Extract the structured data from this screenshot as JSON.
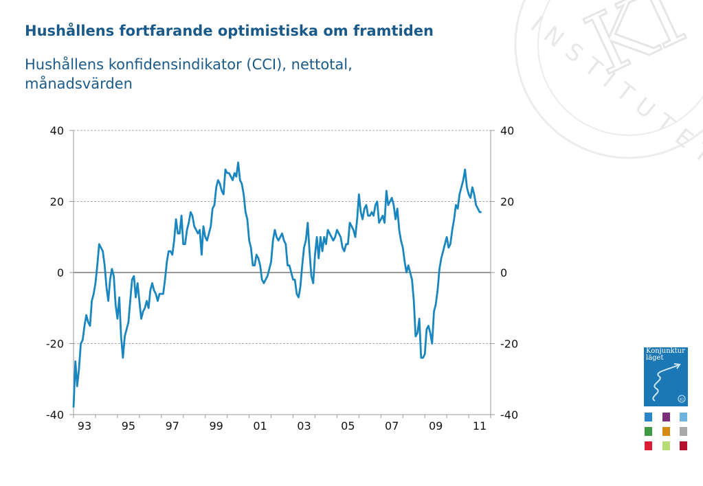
{
  "header": {
    "title": "Hushållens fortfarande optimistiska om framtiden",
    "subtitle": "Hushållens konfidensindikator (CCI), nettotal, månadsvärden"
  },
  "watermark": {
    "text": "INSTITUTET",
    "monogram": "KI"
  },
  "logo": {
    "text_line1": "Konjunktur",
    "text_line2": "läget",
    "badge": "KI",
    "icon_colors": [
      "#2a86c8",
      "#7a2f7a",
      "#6fb3e0",
      "#3f9a45",
      "#d58a14",
      "#a9a9a9",
      "#d91e36",
      "#b7dc74",
      "#b3112c"
    ]
  },
  "chart_data": {
    "type": "line",
    "title": "Hushållens konfidensindikator (CCI), nettotal, månadsvärden",
    "ylim": [
      -40,
      40
    ],
    "yticks": [
      40,
      20,
      0,
      -20,
      -40
    ],
    "ytick_labels": [
      "40",
      "20",
      "0",
      "-20",
      "-40"
    ],
    "xlim": [
      1993.0,
      2012.0
    ],
    "xtick_labels": [
      "93",
      "95",
      "97",
      "99",
      "01",
      "03",
      "05",
      "07",
      "09",
      "11"
    ],
    "xtick_positions": [
      1993,
      1995,
      1997,
      1999,
      2001,
      2003,
      2005,
      2007,
      2009,
      2011
    ],
    "gridlines": true,
    "line_color": "#1a86bf",
    "series": [
      {
        "name": "",
        "x_start": 1993.0,
        "x_step_months": 1,
        "values": [
          -38.0,
          -25.0,
          -32.0,
          -27.0,
          -20.0,
          -19.0,
          -15.0,
          -12.0,
          -14.0,
          -15.0,
          -8.0,
          -6.0,
          -3.0,
          2.0,
          8.0,
          7.0,
          6.0,
          2.0,
          -4.0,
          -8.0,
          -2.0,
          1.0,
          -1.0,
          -9.0,
          -13.0,
          -7.0,
          -18.0,
          -24.0,
          -18.0,
          -16.0,
          -14.0,
          -8.0,
          -2.0,
          -1.0,
          -7.0,
          -3.0,
          -8.0,
          -13.0,
          -11.0,
          -10.0,
          -8.0,
          -10.0,
          -5.0,
          -3.0,
          -5.0,
          -6.0,
          -8.0,
          -6.0,
          -6.0,
          -6.0,
          -2.0,
          3.0,
          6.0,
          6.0,
          5.0,
          9.0,
          15.0,
          11.0,
          11.0,
          16.0,
          8.0,
          8.0,
          12.0,
          14.0,
          17.0,
          16.0,
          13.0,
          12.0,
          11.0,
          12.0,
          5.0,
          13.0,
          10.0,
          9.0,
          11.0,
          13.0,
          18.0,
          19.0,
          24.0,
          26.0,
          25.0,
          23.0,
          22.0,
          29.0,
          28.0,
          28.0,
          27.0,
          26.0,
          28.0,
          27.0,
          31.0,
          26.0,
          25.0,
          22.0,
          17.0,
          15.0,
          9.0,
          7.0,
          2.0,
          2.0,
          5.0,
          4.0,
          2.0,
          -2.0,
          -3.0,
          -2.0,
          -1.0,
          1.0,
          3.0,
          9.0,
          12.0,
          10.0,
          9.0,
          10.0,
          11.0,
          9.0,
          8.0,
          2.0,
          2.0,
          0.0,
          -2.0,
          -2.0,
          -6.0,
          -7.0,
          -4.0,
          2.0,
          7.0,
          9.0,
          14.0,
          6.0,
          -1.0,
          -3.0,
          5.0,
          10.0,
          4.0,
          10.0,
          6.0,
          10.0,
          8.0,
          12.0,
          11.0,
          10.0,
          9.0,
          10.0,
          12.0,
          11.0,
          10.0,
          7.0,
          6.0,
          8.0,
          8.0,
          14.0,
          13.0,
          12.0,
          10.0,
          15.0,
          22.0,
          17.0,
          15.0,
          18.0,
          19.0,
          16.0,
          16.0,
          17.0,
          16.0,
          19.0,
          20.0,
          14.0,
          15.0,
          16.0,
          14.0,
          23.0,
          19.0,
          20.0,
          21.0,
          19.0,
          15.0,
          18.0,
          12.0,
          9.0,
          7.0,
          3.0,
          0.0,
          2.0,
          0.0,
          -2.0,
          -8.0,
          -18.0,
          -17.0,
          -13.0,
          -24.0,
          -24.0,
          -23.0,
          -16.0,
          -15.0,
          -17.0,
          -20.0,
          -11.0,
          -9.0,
          -5.0,
          1.0,
          4.0,
          6.0,
          8.0,
          10.0,
          7.0,
          8.0,
          12.0,
          15.0,
          19.0,
          18.0,
          22.0,
          24.0,
          26.0,
          29.0,
          24.0,
          22.0,
          21.0,
          24.0,
          22.0,
          19.0,
          18.0,
          17.0,
          17.0
        ]
      }
    ]
  }
}
